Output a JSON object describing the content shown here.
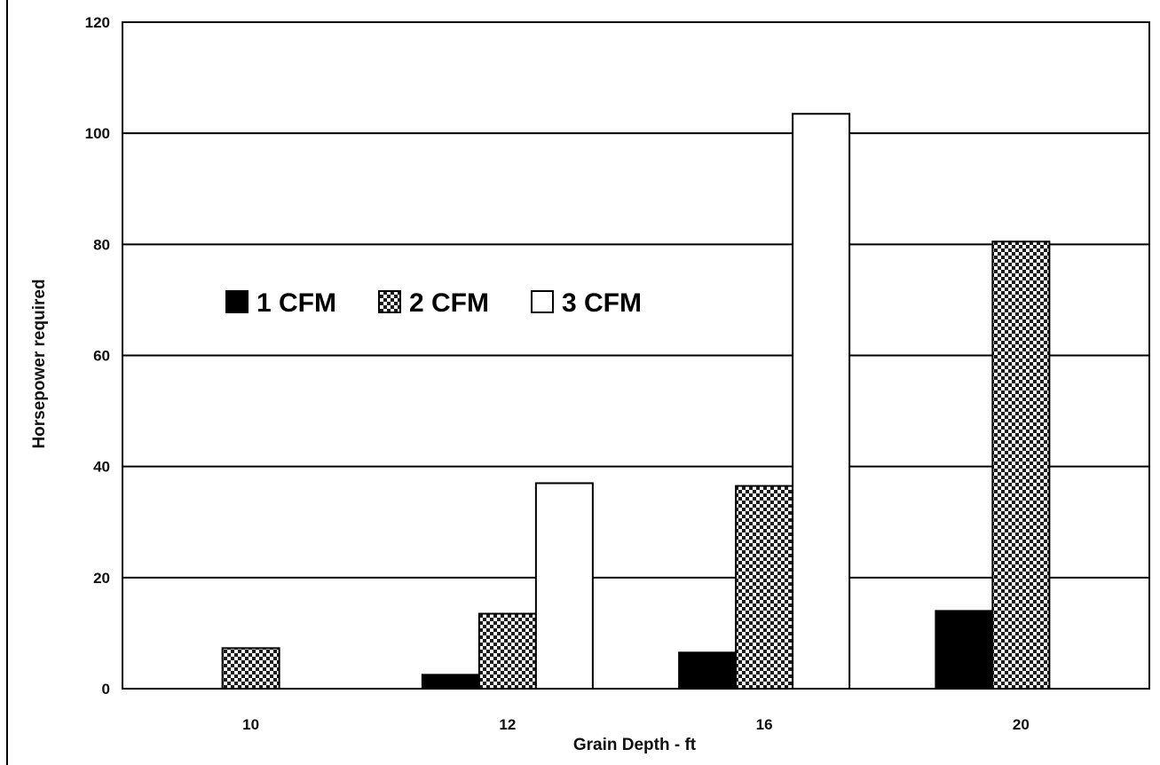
{
  "chart_data": {
    "type": "bar",
    "title": "",
    "xlabel": "Grain Depth - ft",
    "ylabel": "Horsepower required",
    "categories": [
      "10",
      "12",
      "16",
      "20"
    ],
    "series": [
      {
        "name": "1 CFM",
        "values": [
          0,
          2.5,
          6.5,
          14
        ],
        "color": "#000000",
        "pattern": "solid"
      },
      {
        "name": "2 CFM",
        "values": [
          7.3,
          13.5,
          36.5,
          80.5
        ],
        "color": "#1a1a1a",
        "pattern": "checker"
      },
      {
        "name": "3 CFM",
        "values": [
          0,
          37,
          103.5,
          0
        ],
        "color": "#ffffff",
        "pattern": "white"
      }
    ],
    "ylim": [
      0,
      120
    ],
    "yticks": [
      0,
      20,
      40,
      60,
      80,
      100,
      120
    ],
    "grid": true,
    "legend_position": "upper-left-inside"
  }
}
